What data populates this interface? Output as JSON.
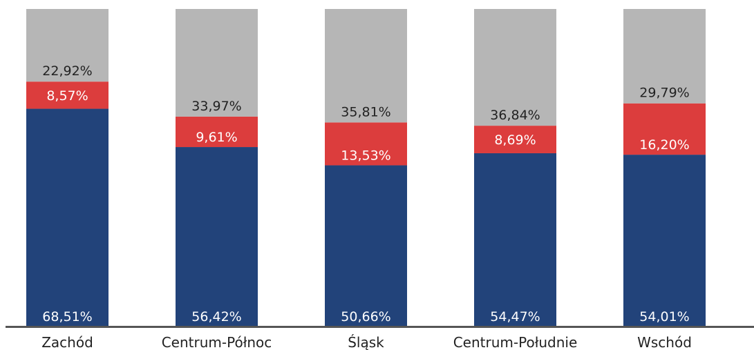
{
  "chart_data": {
    "type": "bar",
    "stacked": true,
    "categories": [
      "Zachód",
      "Centrum-Północ",
      "Śląsk",
      "Centrum-Południe",
      "Wschód"
    ],
    "series": [
      {
        "values": [
          68.51,
          56.42,
          50.66,
          54.47,
          54.01
        ],
        "labels": [
          "68,51%",
          "56,42%",
          "50,66%",
          "54,47%",
          "54,01%"
        ],
        "color": "#22437a",
        "label_color": "#ffffff"
      },
      {
        "values": [
          8.57,
          9.61,
          13.53,
          8.69,
          16.2
        ],
        "labels": [
          "8,57%",
          "9,61%",
          "13,53%",
          "8,69%",
          "16,20%"
        ],
        "color": "#dc3d3d",
        "label_color": "#ffffff"
      },
      {
        "values": [
          22.92,
          33.97,
          35.81,
          36.84,
          29.79
        ],
        "labels": [
          "22,92%",
          "33,97%",
          "35,81%",
          "36,84%",
          "29,79%"
        ],
        "color": "#b6b6b6",
        "label_color": "#222222"
      }
    ],
    "ylim": [
      0,
      100
    ],
    "title": "",
    "xlabel": "",
    "ylabel": "",
    "axis_color": "#555555",
    "grid": false,
    "legend": "none"
  }
}
